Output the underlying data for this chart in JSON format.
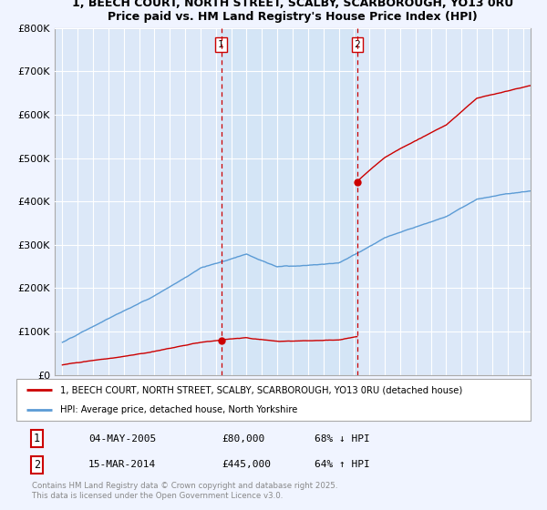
{
  "title_line1": "1, BEECH COURT, NORTH STREET, SCALBY, SCARBOROUGH, YO13 0RU",
  "title_line2": "Price paid vs. HM Land Registry's House Price Index (HPI)",
  "legend_label_red": "1, BEECH COURT, NORTH STREET, SCALBY, SCARBOROUGH, YO13 0RU (detached house)",
  "legend_label_blue": "HPI: Average price, detached house, North Yorkshire",
  "transaction1_label": "1",
  "transaction1_date": "04-MAY-2005",
  "transaction1_price": "£80,000",
  "transaction1_hpi": "68% ↓ HPI",
  "transaction1_year": 2005.34,
  "transaction1_value": 80000,
  "transaction2_label": "2",
  "transaction2_date": "15-MAR-2014",
  "transaction2_price": "£445,000",
  "transaction2_hpi": "64% ↑ HPI",
  "transaction2_year": 2014.21,
  "transaction2_value": 445000,
  "copyright_text": "Contains HM Land Registry data © Crown copyright and database right 2025.\nThis data is licensed under the Open Government Licence v3.0.",
  "ylim": [
    0,
    800000
  ],
  "xlim_start": 1994.5,
  "xlim_end": 2025.5,
  "background_color": "#f0f4ff",
  "plot_bg_color": "#dce8f8",
  "highlight_color": "#ccddf5",
  "red_color": "#cc0000",
  "blue_color": "#5b9bd5",
  "vline_color": "#cc0000",
  "grid_color": "#cccccc",
  "title_fontsize": 9,
  "label_fontsize": 7
}
